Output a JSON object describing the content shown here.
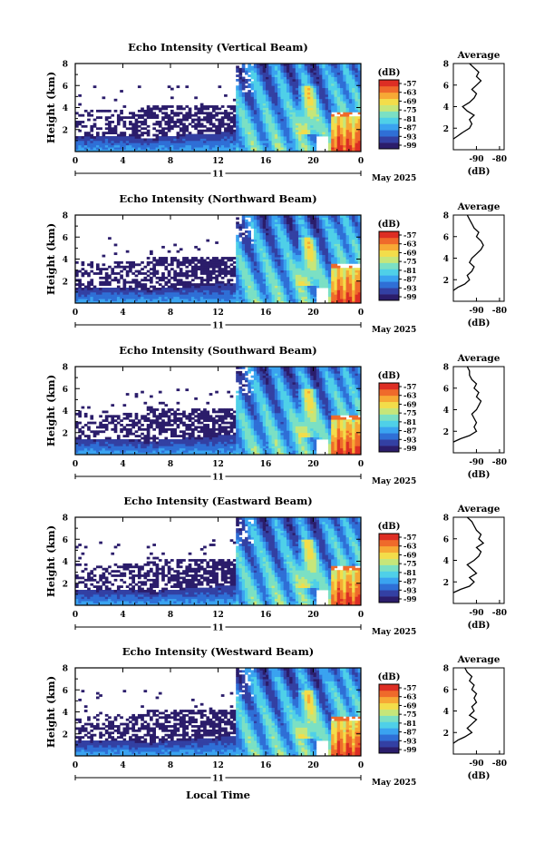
{
  "colors": {
    "scale": [
      "#2b1d6b",
      "#3340a3",
      "#2f6fd6",
      "#3aa3f0",
      "#4fd0e8",
      "#7be0c4",
      "#c6e67a",
      "#f3dd4a",
      "#f7a935",
      "#ef6a2b",
      "#dd2e24"
    ]
  },
  "common": {
    "colorbar_unit": "(dB)",
    "colorbar_ticks": [
      "-57",
      "-63",
      "-69",
      "-75",
      "-81",
      "-87",
      "-93",
      "-99"
    ],
    "x_ticks": [
      "0",
      "4",
      "8",
      "12",
      "16",
      "20",
      "0"
    ],
    "date_mid": "11",
    "date_month": "May 2025",
    "y_label": "Height (km)",
    "y_ticks": [
      "2",
      "4",
      "6",
      "8"
    ],
    "avg_title": "Average",
    "avg_x_ticks": [
      "-90",
      "-80"
    ],
    "avg_xlabel": "(dB)",
    "x_label": "Local Time"
  },
  "chart_data": [
    {
      "type": "heatmap",
      "title": "Echo Intensity (Vertical Beam)",
      "xlabel": "",
      "ylabel": "Height (km)",
      "xlim": [
        0,
        24
      ],
      "ylim": [
        0,
        8
      ],
      "clim": [
        -99,
        -57
      ],
      "avg_profile": {
        "x": [
          -100,
          -98,
          -96,
          -93,
          -92,
          -93,
          -91,
          -94,
          -96,
          -93,
          -91,
          -90,
          -92,
          -90,
          -88,
          -90,
          -89,
          -91,
          -93
        ],
        "y": [
          1.0,
          1.3,
          1.6,
          2.0,
          2.4,
          2.8,
          3.2,
          3.6,
          4.0,
          4.4,
          4.8,
          5.2,
          5.6,
          6.0,
          6.4,
          6.8,
          7.2,
          7.6,
          8.0
        ]
      }
    },
    {
      "type": "heatmap",
      "title": "Echo Intensity (Northward Beam)",
      "xlabel": "",
      "ylabel": "Height (km)",
      "xlim": [
        0,
        24
      ],
      "ylim": [
        0,
        8
      ],
      "clim": [
        -99,
        -57
      ],
      "avg_profile": {
        "x": [
          -100,
          -98,
          -95,
          -93,
          -94,
          -92,
          -91,
          -93,
          -92,
          -90,
          -88,
          -87,
          -88,
          -90,
          -89,
          -91,
          -92,
          -93,
          -94
        ],
        "y": [
          1.0,
          1.3,
          1.6,
          2.0,
          2.4,
          2.8,
          3.2,
          3.6,
          4.0,
          4.4,
          4.8,
          5.2,
          5.6,
          6.0,
          6.4,
          6.8,
          7.2,
          7.6,
          8.0
        ]
      }
    },
    {
      "type": "heatmap",
      "title": "Echo Intensity (Southward Beam)",
      "xlabel": "",
      "ylabel": "Height (km)",
      "xlim": [
        0,
        24
      ],
      "ylim": [
        0,
        8
      ],
      "clim": [
        -99,
        -57
      ],
      "avg_profile": {
        "x": [
          -100,
          -97,
          -93,
          -90,
          -91,
          -90,
          -91,
          -92,
          -90,
          -89,
          -88,
          -90,
          -89,
          -91,
          -90,
          -92,
          -93,
          -93,
          -94
        ],
        "y": [
          1.0,
          1.3,
          1.6,
          2.0,
          2.4,
          2.8,
          3.2,
          3.6,
          4.0,
          4.4,
          4.8,
          5.2,
          5.6,
          6.0,
          6.4,
          6.8,
          7.2,
          7.6,
          8.0
        ]
      }
    },
    {
      "type": "heatmap",
      "title": "Echo Intensity (Eastward Beam)",
      "xlabel": "",
      "ylabel": "Height (km)",
      "xlim": [
        0,
        24
      ],
      "ylim": [
        0,
        8
      ],
      "clim": [
        -99,
        -57
      ],
      "avg_profile": {
        "x": [
          -100,
          -97,
          -93,
          -91,
          -93,
          -90,
          -92,
          -94,
          -91,
          -89,
          -88,
          -90,
          -87,
          -89,
          -88,
          -90,
          -91,
          -92,
          -94
        ],
        "y": [
          1.0,
          1.3,
          1.6,
          2.0,
          2.4,
          2.8,
          3.2,
          3.6,
          4.0,
          4.4,
          4.8,
          5.2,
          5.6,
          6.0,
          6.4,
          6.8,
          7.2,
          7.6,
          8.0
        ]
      }
    },
    {
      "type": "heatmap",
      "title": "Echo Intensity (Westward Beam)",
      "xlabel": "",
      "ylabel": "Height (km)",
      "xlim": [
        0,
        24
      ],
      "ylim": [
        0,
        8
      ],
      "clim": [
        -99,
        -57
      ],
      "avg_profile": {
        "x": [
          -100,
          -98,
          -95,
          -92,
          -94,
          -92,
          -90,
          -93,
          -91,
          -92,
          -90,
          -91,
          -90,
          -92,
          -91,
          -93,
          -92,
          -94,
          -95
        ],
        "y": [
          1.0,
          1.3,
          1.6,
          2.0,
          2.4,
          2.8,
          3.2,
          3.6,
          4.0,
          4.4,
          4.8,
          5.2,
          5.6,
          6.0,
          6.4,
          6.8,
          7.2,
          7.6,
          8.0
        ]
      }
    }
  ]
}
